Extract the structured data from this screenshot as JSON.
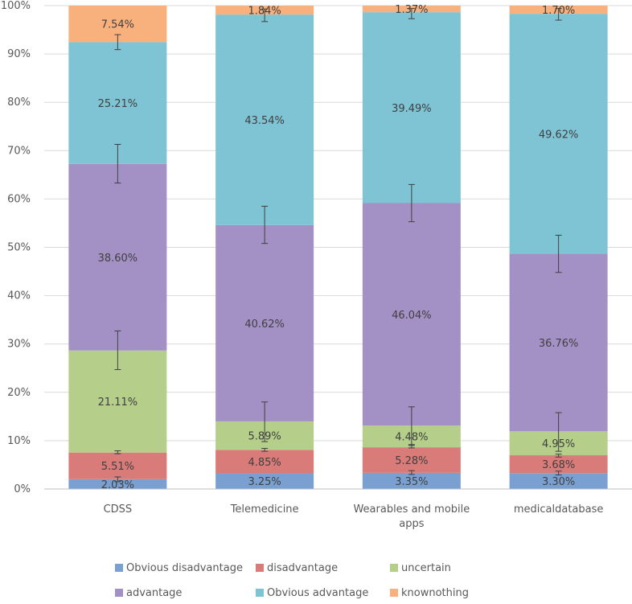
{
  "chart_data": {
    "type": "bar",
    "stacked": true,
    "title": "",
    "xlabel": "",
    "ylabel": "",
    "ylim": [
      0,
      100
    ],
    "yticks": [
      "0%",
      "10%",
      "20%",
      "30%",
      "40%",
      "50%",
      "60%",
      "70%",
      "80%",
      "90%",
      "100%"
    ],
    "categories": [
      "CDSS",
      "Telemedicine",
      "Wearables and mobile apps",
      "medicaldatabase"
    ],
    "category_lines": [
      [
        "CDSS"
      ],
      [
        "Telemedicine"
      ],
      [
        "Wearables and mobile",
        "apps"
      ],
      [
        "medicaldatabase"
      ]
    ],
    "series": [
      {
        "name": "Obvious disadvantage",
        "color": "#7aa0d2",
        "values": [
          2.03,
          3.25,
          3.35,
          3.3
        ],
        "labels": [
          "2.03%",
          "3.25%",
          "3.35%",
          "3.30%"
        ]
      },
      {
        "name": "disadvantage",
        "color": "#d97b78",
        "values": [
          5.51,
          4.85,
          5.28,
          3.68
        ],
        "labels": [
          "5.51%",
          "4.85%",
          "5.28%",
          "3.68%"
        ]
      },
      {
        "name": "uncertain",
        "color": "#b5cf8a",
        "values": [
          21.11,
          5.89,
          4.48,
          4.95
        ],
        "labels": [
          "21.11%",
          "5.89%",
          "4.48%",
          "4.95%"
        ]
      },
      {
        "name": "advantage",
        "color": "#a390c4",
        "values": [
          38.6,
          40.62,
          46.04,
          36.76
        ],
        "labels": [
          "38.60%",
          "40.62%",
          "46.04%",
          "36.76%"
        ]
      },
      {
        "name": "Obvious advantage",
        "color": "#7ec4d4",
        "values": [
          25.21,
          43.54,
          39.49,
          49.62
        ],
        "labels": [
          "25.21%",
          "43.54%",
          "39.49%",
          "49.62%"
        ]
      },
      {
        "name": "knownothing",
        "color": "#f8b07d",
        "values": [
          7.54,
          1.84,
          1.37,
          1.7
        ],
        "labels": [
          "7.54%",
          "1.84%",
          "1.37%",
          "1.70%"
        ]
      }
    ],
    "error_bars": [
      [
        [
          1.5,
          2.5
        ],
        [
          7.3,
          7.9
        ],
        [
          24.7,
          32.7
        ],
        [
          63.3,
          71.3
        ],
        [
          90.9,
          94.0
        ],
        null
      ],
      [
        [
          null,
          null
        ],
        [
          7.8,
          8.4
        ],
        [
          9.8,
          18.0
        ],
        [
          50.8,
          58.5
        ],
        [
          96.7,
          99.3
        ],
        null
      ],
      [
        [
          3.0,
          3.8
        ],
        [
          8.5,
          9.2
        ],
        [
          9.0,
          17.0
        ],
        [
          55.3,
          63.0
        ],
        [
          97.3,
          99.4
        ],
        null
      ],
      [
        [
          2.9,
          3.7
        ],
        [
          6.6,
          7.2
        ],
        [
          7.8,
          15.8
        ],
        [
          44.8,
          52.5
        ],
        [
          97.0,
          99.4
        ],
        null
      ]
    ],
    "legend_position": "bottom"
  }
}
